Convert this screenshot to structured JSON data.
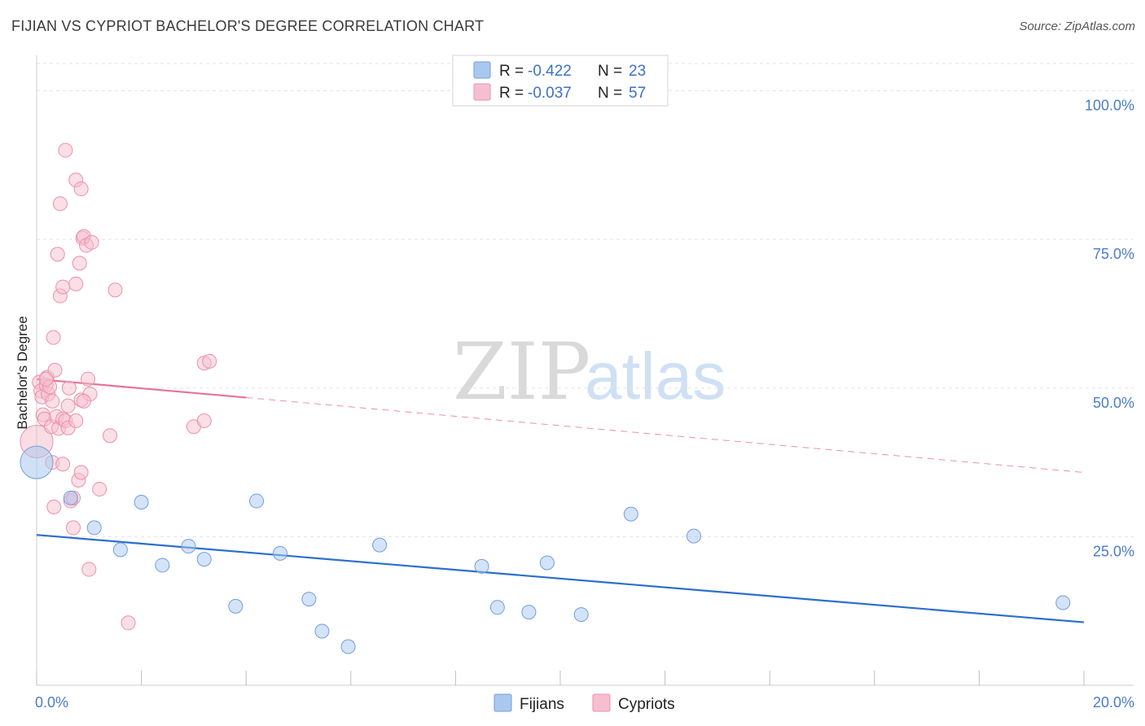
{
  "title": "FIJIAN VS CYPRIOT BACHELOR'S DEGREE CORRELATION CHART",
  "source": "Source: ZipAtlas.com",
  "watermark": {
    "zip": "ZIP",
    "atlas": "atlas"
  },
  "colors": {
    "fijians_fill": "#aac8ef",
    "fijians_stroke": "#6f9fdc",
    "fijians_line": "#2b6fcd",
    "cypriots_fill": "#f6bfd0",
    "cypriots_stroke": "#ec8fab",
    "cypriots_line": "#e5739a"
  },
  "legend": {
    "rows": [
      {
        "r_label": "R =",
        "r_value": "-0.422",
        "n_label": "N =",
        "n_value": "23"
      },
      {
        "r_label": "R =",
        "r_value": "-0.037",
        "n_label": "N =",
        "n_value": "57"
      }
    ]
  },
  "bottom_legend": {
    "fijians": "Fijians",
    "cypriots": "Cypriots"
  },
  "chart_data": {
    "type": "scatter",
    "title": "FIJIAN VS CYPRIOT BACHELOR'S DEGREE CORRELATION CHART",
    "xlabel": "",
    "ylabel": "Bachelor's Degree",
    "xlim": [
      0,
      20
    ],
    "ylim": [
      0,
      105
    ],
    "x_tick_labels": [
      "0.0%",
      "20.0%"
    ],
    "y_ticks": [
      25,
      50,
      75,
      100
    ],
    "y_tick_labels": [
      "25.0%",
      "50.0%",
      "75.0%",
      "100.0%"
    ],
    "grid": true,
    "series": [
      {
        "name": "Fijians",
        "r": -0.422,
        "n": 23,
        "points": [
          [
            0.0,
            37.5,
            1
          ],
          [
            0.65,
            31.5,
            0
          ],
          [
            1.1,
            26.5,
            0
          ],
          [
            1.6,
            22.8,
            0
          ],
          [
            2.0,
            30.8,
            0
          ],
          [
            2.4,
            20.2,
            0
          ],
          [
            2.9,
            23.4,
            0
          ],
          [
            3.2,
            21.2,
            0
          ],
          [
            3.8,
            13.3,
            0
          ],
          [
            4.2,
            31.0,
            0
          ],
          [
            4.65,
            22.2,
            0
          ],
          [
            5.2,
            14.5,
            0
          ],
          [
            5.45,
            9.1,
            0
          ],
          [
            5.95,
            6.5,
            0
          ],
          [
            6.55,
            23.6,
            0
          ],
          [
            8.5,
            20.0,
            0
          ],
          [
            8.8,
            13.1,
            0
          ],
          [
            9.4,
            12.3,
            0
          ],
          [
            9.75,
            20.6,
            0
          ],
          [
            10.4,
            11.9,
            0
          ],
          [
            11.35,
            28.8,
            0
          ],
          [
            12.55,
            25.1,
            0
          ],
          [
            19.6,
            13.9,
            0
          ]
        ],
        "trend": {
          "x0": 0,
          "y0": 25.3,
          "x1": 20,
          "y1": 10.6
        }
      },
      {
        "name": "Cypriots",
        "r": -0.037,
        "n": 57,
        "points": [
          [
            0.0,
            41.0,
            1
          ],
          [
            0.05,
            51.0,
            0
          ],
          [
            0.08,
            49.5,
            0
          ],
          [
            0.1,
            48.5,
            0
          ],
          [
            0.12,
            45.5,
            0
          ],
          [
            0.15,
            44.8,
            0
          ],
          [
            0.18,
            50.5,
            0
          ],
          [
            0.2,
            51.8,
            0
          ],
          [
            0.22,
            49.0,
            0
          ],
          [
            0.25,
            50.2,
            0
          ],
          [
            0.28,
            43.5,
            0
          ],
          [
            0.3,
            37.5,
            0
          ],
          [
            0.32,
            58.5,
            0
          ],
          [
            0.35,
            53.0,
            0
          ],
          [
            0.3,
            47.8,
            0
          ],
          [
            0.33,
            30.0,
            0
          ],
          [
            0.38,
            45.2,
            0
          ],
          [
            0.4,
            72.5,
            0
          ],
          [
            0.42,
            43.2,
            0
          ],
          [
            0.45,
            65.5,
            0
          ],
          [
            0.45,
            81.0,
            0
          ],
          [
            0.5,
            67.0,
            0
          ],
          [
            0.5,
            44.8,
            0
          ],
          [
            0.5,
            37.2,
            0
          ],
          [
            0.55,
            44.5,
            0
          ],
          [
            0.6,
            43.3,
            0
          ],
          [
            0.55,
            90.0,
            0
          ],
          [
            0.6,
            47.0,
            0
          ],
          [
            0.65,
            31.0,
            0
          ],
          [
            0.7,
            31.5,
            0
          ],
          [
            0.7,
            26.5,
            0
          ],
          [
            0.75,
            85.0,
            0
          ],
          [
            0.75,
            44.5,
            0
          ],
          [
            0.75,
            67.5,
            0
          ],
          [
            0.8,
            34.5,
            0
          ],
          [
            0.82,
            71.0,
            0
          ],
          [
            0.85,
            83.5,
            0
          ],
          [
            0.85,
            35.8,
            0
          ],
          [
            0.85,
            48.0,
            0
          ],
          [
            0.88,
            75.2,
            0
          ],
          [
            0.9,
            75.5,
            0
          ],
          [
            0.95,
            74.0,
            0
          ],
          [
            0.98,
            51.5,
            0
          ],
          [
            1.0,
            19.5,
            0
          ],
          [
            1.02,
            49.0,
            0
          ],
          [
            1.05,
            74.5,
            0
          ],
          [
            1.2,
            33.0,
            0
          ],
          [
            1.4,
            42.0,
            0
          ],
          [
            1.5,
            66.5,
            0
          ],
          [
            1.75,
            10.5,
            0
          ],
          [
            3.0,
            43.5,
            0
          ],
          [
            3.2,
            44.5,
            0
          ],
          [
            3.2,
            54.2,
            0
          ],
          [
            3.3,
            54.5,
            0
          ],
          [
            0.62,
            50.0,
            0
          ],
          [
            0.18,
            51.5,
            0
          ],
          [
            0.9,
            47.8,
            0
          ]
        ],
        "trend": {
          "x0": 0,
          "y0": 51.5,
          "x1": 4.0,
          "y1": 48.4,
          "x_dash_end": 20,
          "y_dash_end": 35.8
        }
      }
    ]
  }
}
